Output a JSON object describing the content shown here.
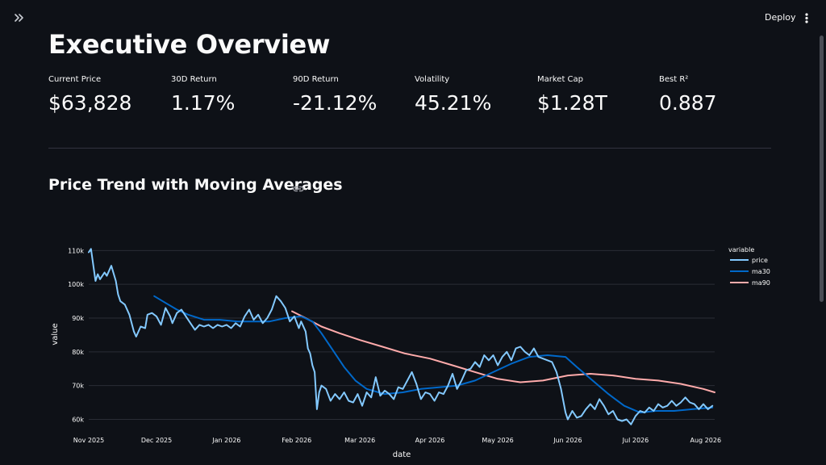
{
  "toolbar": {
    "expand_icon": "chevrons-right-icon",
    "deploy_label": "Deploy",
    "menu_icon": "kebab-vertical-icon"
  },
  "page": {
    "title": "Executive Overview"
  },
  "metrics": [
    {
      "label": "Current Price",
      "value": "$63,828"
    },
    {
      "label": "30D Return",
      "value": "1.17%"
    },
    {
      "label": "90D Return",
      "value": "-21.12%"
    },
    {
      "label": "Volatility",
      "value": "45.21%"
    },
    {
      "label": "Market Cap",
      "value": "$1.28T"
    },
    {
      "label": "Best R²",
      "value": "0.887"
    }
  ],
  "section": {
    "title": "Price Trend with Moving Averages",
    "link_icon": "link-icon"
  },
  "colors": {
    "background": "#0e1117",
    "price": "#83c9ff",
    "ma30": "#0068c9",
    "ma90": "#ffabab"
  },
  "chart_data": {
    "type": "line",
    "xlabel": "date",
    "ylabel": "value",
    "x_ticks": [
      "Nov 2025",
      "Dec 2025",
      "Jan 2026",
      "Feb 2026",
      "Mar 2026",
      "Apr 2026",
      "May 2026",
      "Jun 2026",
      "Jul 2026",
      "Aug 2026"
    ],
    "y_ticks": [
      "60k",
      "70k",
      "80k",
      "90k",
      "100k",
      "110k"
    ],
    "ylim": [
      57000,
      112000
    ],
    "xlim": [
      "2025-11-01",
      "2026-08-05"
    ],
    "grid": true,
    "legend": {
      "title": "variable",
      "placement": "top-right"
    },
    "series": [
      {
        "name": "price",
        "color": "#83c9ff",
        "points": [
          [
            "2025-11-01",
            109500
          ],
          [
            "2025-11-02",
            110500
          ],
          [
            "2025-11-04",
            101000
          ],
          [
            "2025-11-05",
            103000
          ],
          [
            "2025-11-06",
            101500
          ],
          [
            "2025-11-08",
            103500
          ],
          [
            "2025-11-09",
            102500
          ],
          [
            "2025-11-11",
            105500
          ],
          [
            "2025-11-13",
            101000
          ],
          [
            "2025-11-14",
            97000
          ],
          [
            "2025-11-15",
            95000
          ],
          [
            "2025-11-17",
            94000
          ],
          [
            "2025-11-19",
            91000
          ],
          [
            "2025-11-21",
            86000
          ],
          [
            "2025-11-22",
            84500
          ],
          [
            "2025-11-24",
            87500
          ],
          [
            "2025-11-26",
            87000
          ],
          [
            "2025-11-27",
            91000
          ],
          [
            "2025-11-29",
            91500
          ],
          [
            "2025-12-01",
            90500
          ],
          [
            "2025-12-03",
            88000
          ],
          [
            "2025-12-05",
            93000
          ],
          [
            "2025-12-07",
            90500
          ],
          [
            "2025-12-08",
            88500
          ],
          [
            "2025-12-10",
            91500
          ],
          [
            "2025-12-12",
            92500
          ],
          [
            "2025-12-14",
            90500
          ],
          [
            "2025-12-16",
            88500
          ],
          [
            "2025-12-18",
            86500
          ],
          [
            "2025-12-20",
            88000
          ],
          [
            "2025-12-22",
            87500
          ],
          [
            "2025-12-24",
            88000
          ],
          [
            "2025-12-26",
            87000
          ],
          [
            "2025-12-28",
            88000
          ],
          [
            "2025-12-30",
            87500
          ],
          [
            "2026-01-01",
            88000
          ],
          [
            "2026-01-03",
            87000
          ],
          [
            "2026-01-05",
            88500
          ],
          [
            "2026-01-07",
            87500
          ],
          [
            "2026-01-09",
            90500
          ],
          [
            "2026-01-11",
            92500
          ],
          [
            "2026-01-13",
            89500
          ],
          [
            "2026-01-15",
            91000
          ],
          [
            "2026-01-17",
            88500
          ],
          [
            "2026-01-19",
            90000
          ],
          [
            "2026-01-21",
            92500
          ],
          [
            "2026-01-23",
            96500
          ],
          [
            "2026-01-25",
            95000
          ],
          [
            "2026-01-27",
            93000
          ],
          [
            "2026-01-29",
            89000
          ],
          [
            "2026-01-31",
            90500
          ],
          [
            "2026-02-02",
            87000
          ],
          [
            "2026-02-03",
            89000
          ],
          [
            "2026-02-05",
            86000
          ],
          [
            "2026-02-06",
            81000
          ],
          [
            "2026-02-07",
            79500
          ],
          [
            "2026-02-08",
            76000
          ],
          [
            "2026-02-09",
            74000
          ],
          [
            "2026-02-10",
            63000
          ],
          [
            "2026-02-11",
            68000
          ],
          [
            "2026-02-12",
            70000
          ],
          [
            "2026-02-14",
            69000
          ],
          [
            "2026-02-16",
            65500
          ],
          [
            "2026-02-18",
            67500
          ],
          [
            "2026-02-20",
            66000
          ],
          [
            "2026-02-22",
            68000
          ],
          [
            "2026-02-24",
            65500
          ],
          [
            "2026-02-26",
            65000
          ],
          [
            "2026-02-28",
            67500
          ],
          [
            "2026-03-02",
            64000
          ],
          [
            "2026-03-04",
            68000
          ],
          [
            "2026-03-06",
            66500
          ],
          [
            "2026-03-08",
            72500
          ],
          [
            "2026-03-10",
            67000
          ],
          [
            "2026-03-12",
            68500
          ],
          [
            "2026-03-14",
            67500
          ],
          [
            "2026-03-16",
            66000
          ],
          [
            "2026-03-18",
            69500
          ],
          [
            "2026-03-20",
            69000
          ],
          [
            "2026-03-22",
            71500
          ],
          [
            "2026-03-24",
            74000
          ],
          [
            "2026-03-26",
            70500
          ],
          [
            "2026-03-28",
            66000
          ],
          [
            "2026-03-30",
            68000
          ],
          [
            "2026-04-01",
            67500
          ],
          [
            "2026-04-03",
            65500
          ],
          [
            "2026-04-05",
            68000
          ],
          [
            "2026-04-07",
            67500
          ],
          [
            "2026-04-09",
            70000
          ],
          [
            "2026-04-11",
            73500
          ],
          [
            "2026-04-13",
            69000
          ],
          [
            "2026-04-15",
            71500
          ],
          [
            "2026-04-17",
            74500
          ],
          [
            "2026-04-19",
            75000
          ],
          [
            "2026-04-21",
            77000
          ],
          [
            "2026-04-23",
            75500
          ],
          [
            "2026-04-25",
            79000
          ],
          [
            "2026-04-27",
            77500
          ],
          [
            "2026-04-29",
            79000
          ],
          [
            "2026-05-01",
            76000
          ],
          [
            "2026-05-03",
            78500
          ],
          [
            "2026-05-05",
            80000
          ],
          [
            "2026-05-07",
            77500
          ],
          [
            "2026-05-09",
            81000
          ],
          [
            "2026-05-11",
            81500
          ],
          [
            "2026-05-13",
            80000
          ],
          [
            "2026-05-15",
            79000
          ],
          [
            "2026-05-17",
            81000
          ],
          [
            "2026-05-19",
            78500
          ],
          [
            "2026-05-21",
            78000
          ],
          [
            "2026-05-23",
            77500
          ],
          [
            "2026-05-25",
            77000
          ],
          [
            "2026-05-27",
            74000
          ],
          [
            "2026-05-29",
            69000
          ],
          [
            "2026-05-31",
            62000
          ],
          [
            "2026-06-01",
            60000
          ],
          [
            "2026-06-03",
            62500
          ],
          [
            "2026-06-05",
            60500
          ],
          [
            "2026-06-07",
            61000
          ],
          [
            "2026-06-09",
            63000
          ],
          [
            "2026-06-11",
            64500
          ],
          [
            "2026-06-13",
            63000
          ],
          [
            "2026-06-15",
            66000
          ],
          [
            "2026-06-17",
            64000
          ],
          [
            "2026-06-19",
            61500
          ],
          [
            "2026-06-21",
            62500
          ],
          [
            "2026-06-23",
            60000
          ],
          [
            "2026-06-25",
            59500
          ],
          [
            "2026-06-27",
            60000
          ],
          [
            "2026-06-29",
            58500
          ],
          [
            "2026-07-01",
            61000
          ],
          [
            "2026-07-03",
            62500
          ],
          [
            "2026-07-05",
            62000
          ],
          [
            "2026-07-07",
            63500
          ],
          [
            "2026-07-09",
            62500
          ],
          [
            "2026-07-11",
            64500
          ],
          [
            "2026-07-13",
            63500
          ],
          [
            "2026-07-15",
            64000
          ],
          [
            "2026-07-17",
            65500
          ],
          [
            "2026-07-19",
            64000
          ],
          [
            "2026-07-21",
            65000
          ],
          [
            "2026-07-23",
            66500
          ],
          [
            "2026-07-25",
            65000
          ],
          [
            "2026-07-27",
            64500
          ],
          [
            "2026-07-29",
            63000
          ],
          [
            "2026-07-31",
            64500
          ],
          [
            "2026-08-02",
            63000
          ],
          [
            "2026-08-04",
            64000
          ]
        ]
      },
      {
        "name": "ma30",
        "color": "#0068c9",
        "points": [
          [
            "2025-11-30",
            96500
          ],
          [
            "2025-12-05",
            94500
          ],
          [
            "2025-12-10",
            92500
          ],
          [
            "2025-12-15",
            91000
          ],
          [
            "2025-12-22",
            89500
          ],
          [
            "2025-12-29",
            89500
          ],
          [
            "2026-01-06",
            89000
          ],
          [
            "2026-01-13",
            89000
          ],
          [
            "2026-01-20",
            89000
          ],
          [
            "2026-01-27",
            90000
          ],
          [
            "2026-02-03",
            90500
          ],
          [
            "2026-02-08",
            89000
          ],
          [
            "2026-02-12",
            85500
          ],
          [
            "2026-02-17",
            80500
          ],
          [
            "2026-02-22",
            75500
          ],
          [
            "2026-02-27",
            71500
          ],
          [
            "2026-03-04",
            69000
          ],
          [
            "2026-03-12",
            67500
          ],
          [
            "2026-03-20",
            68000
          ],
          [
            "2026-03-28",
            69000
          ],
          [
            "2026-04-05",
            69500
          ],
          [
            "2026-04-13",
            70000
          ],
          [
            "2026-04-21",
            71500
          ],
          [
            "2026-04-29",
            74000
          ],
          [
            "2026-05-07",
            76500
          ],
          [
            "2026-05-15",
            78500
          ],
          [
            "2026-05-23",
            79000
          ],
          [
            "2026-05-31",
            78500
          ],
          [
            "2026-06-05",
            75500
          ],
          [
            "2026-06-12",
            71500
          ],
          [
            "2026-06-19",
            67500
          ],
          [
            "2026-06-26",
            64000
          ],
          [
            "2026-07-03",
            62000
          ],
          [
            "2026-07-10",
            62500
          ],
          [
            "2026-07-18",
            62500
          ],
          [
            "2026-07-26",
            63000
          ],
          [
            "2026-08-04",
            63500
          ]
        ]
      },
      {
        "name": "ma90",
        "color": "#ffabab",
        "points": [
          [
            "2026-01-30",
            92000
          ],
          [
            "2026-02-05",
            90000
          ],
          [
            "2026-02-12",
            87500
          ],
          [
            "2026-02-20",
            85500
          ],
          [
            "2026-03-01",
            83500
          ],
          [
            "2026-03-11",
            81500
          ],
          [
            "2026-03-21",
            79500
          ],
          [
            "2026-04-01",
            78000
          ],
          [
            "2026-04-11",
            76000
          ],
          [
            "2026-04-21",
            74000
          ],
          [
            "2026-05-01",
            72000
          ],
          [
            "2026-05-11",
            71000
          ],
          [
            "2026-05-21",
            71500
          ],
          [
            "2026-06-01",
            73000
          ],
          [
            "2026-06-11",
            73500
          ],
          [
            "2026-06-21",
            73000
          ],
          [
            "2026-07-01",
            72000
          ],
          [
            "2026-07-11",
            71500
          ],
          [
            "2026-07-21",
            70500
          ],
          [
            "2026-07-31",
            69000
          ],
          [
            "2026-08-05",
            68000
          ]
        ]
      }
    ]
  }
}
